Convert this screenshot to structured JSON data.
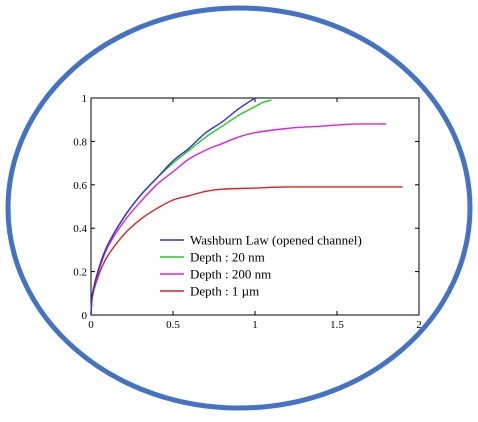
{
  "frame": {
    "border_color": "#4472C4"
  },
  "chart_data": {
    "type": "line",
    "title": "",
    "xlabel": "",
    "ylabel": "",
    "xlim": [
      0,
      2
    ],
    "ylim": [
      0,
      1
    ],
    "x_ticks": [
      0,
      0.5,
      1,
      1.5,
      2
    ],
    "y_ticks": [
      0,
      0.2,
      0.4,
      0.6,
      0.8,
      1
    ],
    "x_tick_labels": [
      "0",
      "0.5",
      "1",
      "1.5",
      "2"
    ],
    "y_tick_labels": [
      "0",
      "0.2",
      "0.4",
      "0.6",
      "0.8",
      "1"
    ],
    "grid": false,
    "legend_position": "lower-right",
    "series": [
      {
        "name": "Washburn Law (opened channel)",
        "color": "#3030D0",
        "x": [
          0,
          0.01,
          0.05,
          0.1,
          0.2,
          0.3,
          0.4,
          0.5,
          0.6,
          0.7,
          0.8,
          0.9,
          1.0
        ],
        "y": [
          0,
          0.1,
          0.22,
          0.32,
          0.45,
          0.55,
          0.63,
          0.71,
          0.77,
          0.84,
          0.89,
          0.95,
          1.0
        ]
      },
      {
        "name": "Depth : 20 nm",
        "color": "#22CC22",
        "x": [
          0,
          0.01,
          0.05,
          0.1,
          0.2,
          0.3,
          0.4,
          0.5,
          0.6,
          0.7,
          0.8,
          0.9,
          1.0,
          1.05,
          1.1
        ],
        "y": [
          0,
          0.1,
          0.22,
          0.32,
          0.45,
          0.55,
          0.63,
          0.7,
          0.76,
          0.82,
          0.87,
          0.92,
          0.96,
          0.98,
          0.99
        ]
      },
      {
        "name": "Depth : 200 nm",
        "color": "#E020E0",
        "x": [
          0,
          0.01,
          0.05,
          0.1,
          0.2,
          0.3,
          0.4,
          0.5,
          0.6,
          0.7,
          0.8,
          0.9,
          1.0,
          1.2,
          1.4,
          1.6,
          1.8
        ],
        "y": [
          0,
          0.1,
          0.21,
          0.31,
          0.43,
          0.52,
          0.6,
          0.66,
          0.72,
          0.76,
          0.79,
          0.82,
          0.84,
          0.86,
          0.87,
          0.88,
          0.88
        ]
      },
      {
        "name": "Depth : 1 µm",
        "color": "#E02020",
        "x": [
          0,
          0.01,
          0.05,
          0.1,
          0.2,
          0.3,
          0.4,
          0.5,
          0.6,
          0.7,
          0.8,
          1.0,
          1.2,
          1.5,
          1.9
        ],
        "y": [
          0,
          0.09,
          0.19,
          0.27,
          0.37,
          0.44,
          0.49,
          0.53,
          0.55,
          0.57,
          0.58,
          0.585,
          0.59,
          0.59,
          0.59
        ]
      }
    ]
  }
}
